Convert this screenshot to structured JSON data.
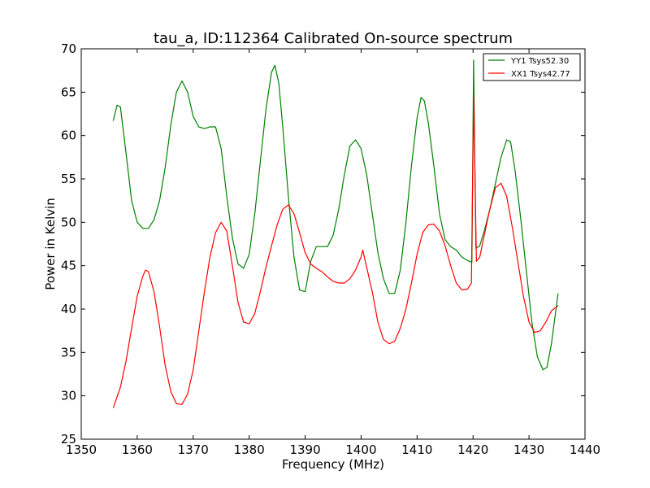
{
  "chart_data": {
    "type": "line",
    "title": "tau_a, ID:112364 Calibrated On-source spectrum",
    "xlabel": "Frequency (MHz)",
    "ylabel": "Power in Kelvin",
    "xlim": [
      1350,
      1440
    ],
    "ylim": [
      25,
      70
    ],
    "xticks": [
      1350,
      1360,
      1370,
      1380,
      1390,
      1400,
      1410,
      1420,
      1430,
      1440
    ],
    "yticks": [
      25,
      30,
      35,
      40,
      45,
      50,
      55,
      60,
      65,
      70
    ],
    "grid": false,
    "legend_position": "top-right",
    "series": [
      {
        "name": "YY1 Tsys52.30",
        "color": "#008000",
        "points": [
          [
            1355.7,
            61.7
          ],
          [
            1356.4,
            63.5
          ],
          [
            1357.0,
            63.3
          ],
          [
            1358.0,
            58.0
          ],
          [
            1359.0,
            52.5
          ],
          [
            1360.0,
            50.0
          ],
          [
            1361.0,
            49.3
          ],
          [
            1362.0,
            49.3
          ],
          [
            1363.0,
            50.3
          ],
          [
            1364.0,
            52.5
          ],
          [
            1365.0,
            56.3
          ],
          [
            1366.0,
            61.2
          ],
          [
            1367.0,
            65.0
          ],
          [
            1368.0,
            66.3
          ],
          [
            1369.0,
            65.0
          ],
          [
            1370.0,
            62.2
          ],
          [
            1371.0,
            61.0
          ],
          [
            1372.0,
            60.8
          ],
          [
            1373.0,
            61.0
          ],
          [
            1374.0,
            61.0
          ],
          [
            1375.0,
            58.5
          ],
          [
            1376.0,
            53.0
          ],
          [
            1377.0,
            48.2
          ],
          [
            1378.0,
            45.2
          ],
          [
            1379.0,
            44.7
          ],
          [
            1380.0,
            46.3
          ],
          [
            1381.0,
            51.0
          ],
          [
            1382.0,
            57.0
          ],
          [
            1383.0,
            63.0
          ],
          [
            1384.0,
            67.3
          ],
          [
            1384.6,
            68.1
          ],
          [
            1385.3,
            66.0
          ],
          [
            1386.0,
            61.0
          ],
          [
            1387.0,
            53.0
          ],
          [
            1388.0,
            46.0
          ],
          [
            1389.0,
            42.2
          ],
          [
            1390.0,
            42.0
          ],
          [
            1391.0,
            45.5
          ],
          [
            1392.0,
            47.2
          ],
          [
            1393.0,
            47.2
          ],
          [
            1394.0,
            47.2
          ],
          [
            1395.0,
            48.5
          ],
          [
            1396.0,
            51.5
          ],
          [
            1397.0,
            55.5
          ],
          [
            1398.0,
            58.8
          ],
          [
            1399.0,
            59.5
          ],
          [
            1400.0,
            58.5
          ],
          [
            1401.0,
            55.5
          ],
          [
            1402.0,
            51.0
          ],
          [
            1403.0,
            46.5
          ],
          [
            1404.0,
            43.5
          ],
          [
            1405.0,
            41.8
          ],
          [
            1406.0,
            41.8
          ],
          [
            1407.0,
            44.5
          ],
          [
            1408.0,
            50.0
          ],
          [
            1409.0,
            56.5
          ],
          [
            1410.0,
            62.0
          ],
          [
            1410.7,
            64.4
          ],
          [
            1411.3,
            64.0
          ],
          [
            1412.0,
            61.5
          ],
          [
            1413.0,
            56.5
          ],
          [
            1414.0,
            51.0
          ],
          [
            1415.0,
            48.0
          ],
          [
            1416.0,
            47.2
          ],
          [
            1417.0,
            46.8
          ],
          [
            1418.0,
            46.0
          ],
          [
            1419.0,
            45.6
          ],
          [
            1419.8,
            45.4
          ],
          [
            1420.1,
            68.7
          ],
          [
            1420.5,
            47.0
          ],
          [
            1421.2,
            47.3
          ],
          [
            1422.0,
            49.0
          ],
          [
            1423.0,
            51.5
          ],
          [
            1424.0,
            54.5
          ],
          [
            1425.0,
            57.5
          ],
          [
            1426.0,
            59.5
          ],
          [
            1426.7,
            59.3
          ],
          [
            1427.5,
            56.0
          ],
          [
            1428.5,
            50.5
          ],
          [
            1429.5,
            44.5
          ],
          [
            1430.5,
            38.5
          ],
          [
            1431.5,
            34.5
          ],
          [
            1432.5,
            33.0
          ],
          [
            1433.2,
            33.3
          ],
          [
            1434.0,
            36.0
          ],
          [
            1435.2,
            41.8
          ]
        ]
      },
      {
        "name": "XX1 Tsys42.77",
        "color": "#ff0000",
        "points": [
          [
            1355.7,
            28.6
          ],
          [
            1357.0,
            31.0
          ],
          [
            1358.0,
            34.0
          ],
          [
            1359.0,
            37.8
          ],
          [
            1360.0,
            41.5
          ],
          [
            1361.0,
            43.8
          ],
          [
            1361.5,
            44.5
          ],
          [
            1362.0,
            44.3
          ],
          [
            1363.0,
            42.0
          ],
          [
            1364.0,
            38.0
          ],
          [
            1365.0,
            33.5
          ],
          [
            1366.0,
            30.5
          ],
          [
            1367.0,
            29.1
          ],
          [
            1368.0,
            29.0
          ],
          [
            1369.0,
            30.2
          ],
          [
            1370.0,
            33.0
          ],
          [
            1371.0,
            37.5
          ],
          [
            1372.0,
            42.0
          ],
          [
            1373.0,
            46.0
          ],
          [
            1374.0,
            48.8
          ],
          [
            1375.0,
            50.0
          ],
          [
            1376.0,
            49.0
          ],
          [
            1377.0,
            45.0
          ],
          [
            1378.0,
            40.8
          ],
          [
            1379.0,
            38.5
          ],
          [
            1380.0,
            38.3
          ],
          [
            1381.0,
            39.5
          ],
          [
            1382.0,
            42.0
          ],
          [
            1383.0,
            44.8
          ],
          [
            1384.0,
            47.3
          ],
          [
            1385.0,
            49.7
          ],
          [
            1386.0,
            51.5
          ],
          [
            1387.0,
            52.0
          ],
          [
            1388.0,
            51.0
          ],
          [
            1389.0,
            48.8
          ],
          [
            1390.0,
            46.5
          ],
          [
            1391.0,
            45.2
          ],
          [
            1392.0,
            44.7
          ],
          [
            1393.0,
            44.3
          ],
          [
            1394.0,
            43.7
          ],
          [
            1395.0,
            43.2
          ],
          [
            1396.0,
            43.0
          ],
          [
            1397.0,
            43.0
          ],
          [
            1398.0,
            43.5
          ],
          [
            1399.0,
            44.5
          ],
          [
            1400.0,
            46.0
          ],
          [
            1400.3,
            46.8
          ],
          [
            1401.0,
            44.8
          ],
          [
            1402.0,
            42.0
          ],
          [
            1403.0,
            38.5
          ],
          [
            1404.0,
            36.5
          ],
          [
            1405.0,
            36.0
          ],
          [
            1406.0,
            36.3
          ],
          [
            1407.0,
            37.8
          ],
          [
            1408.0,
            40.0
          ],
          [
            1409.0,
            43.0
          ],
          [
            1410.0,
            46.3
          ],
          [
            1411.0,
            48.8
          ],
          [
            1412.0,
            49.7
          ],
          [
            1413.0,
            49.8
          ],
          [
            1414.0,
            49.0
          ],
          [
            1415.0,
            47.3
          ],
          [
            1416.0,
            45.0
          ],
          [
            1417.0,
            43.0
          ],
          [
            1418.0,
            42.2
          ],
          [
            1419.0,
            42.3
          ],
          [
            1419.7,
            43.0
          ],
          [
            1420.1,
            64.5
          ],
          [
            1420.6,
            45.5
          ],
          [
            1421.2,
            46.0
          ],
          [
            1422.0,
            48.5
          ],
          [
            1423.0,
            51.5
          ],
          [
            1424.0,
            54.0
          ],
          [
            1425.0,
            54.5
          ],
          [
            1426.0,
            53.0
          ],
          [
            1427.0,
            49.5
          ],
          [
            1428.0,
            45.5
          ],
          [
            1429.0,
            41.5
          ],
          [
            1430.0,
            38.5
          ],
          [
            1431.0,
            37.3
          ],
          [
            1432.0,
            37.5
          ],
          [
            1433.0,
            38.5
          ],
          [
            1434.0,
            39.8
          ],
          [
            1435.0,
            40.3
          ],
          [
            1435.2,
            40.4
          ]
        ]
      }
    ]
  }
}
